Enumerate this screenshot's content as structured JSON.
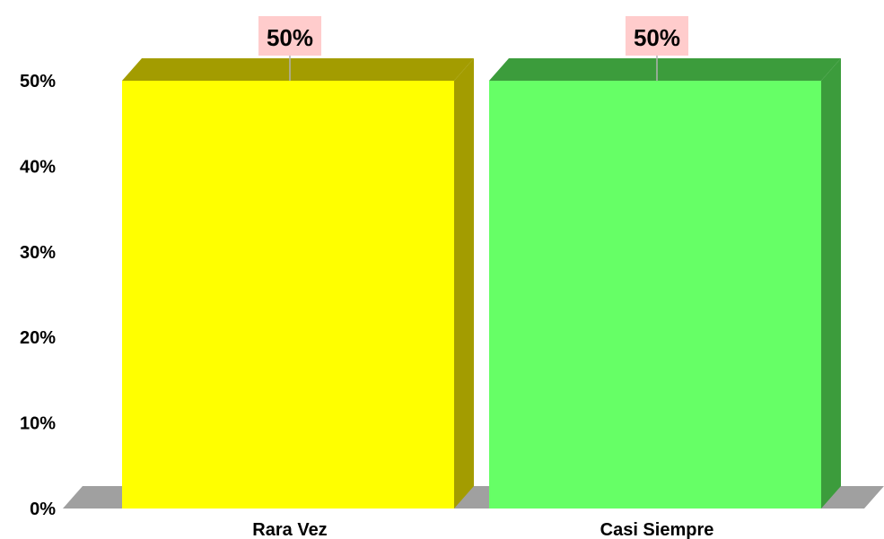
{
  "chart_data": {
    "type": "bar",
    "title": "",
    "xlabel": "",
    "ylabel": "",
    "categories": [
      "Rara Vez",
      "Casi Siempre"
    ],
    "values": [
      50,
      50
    ],
    "data_labels": [
      "50%",
      "50%"
    ],
    "ylim": [
      0,
      50
    ],
    "yticks": [
      0,
      10,
      20,
      30,
      40,
      50
    ],
    "ytick_labels": [
      "0%",
      "10%",
      "20%",
      "30%",
      "40%",
      "50%"
    ],
    "grid": false,
    "legend": "none",
    "colors": {
      "bars": [
        "#ffff00",
        "#66ff66"
      ],
      "bar_sides": [
        "#a39c00",
        "#3c9c3c"
      ],
      "floor": "#a0a0a0",
      "label_background": "#ffcccc",
      "leader_line": "#b0b0b0"
    }
  }
}
